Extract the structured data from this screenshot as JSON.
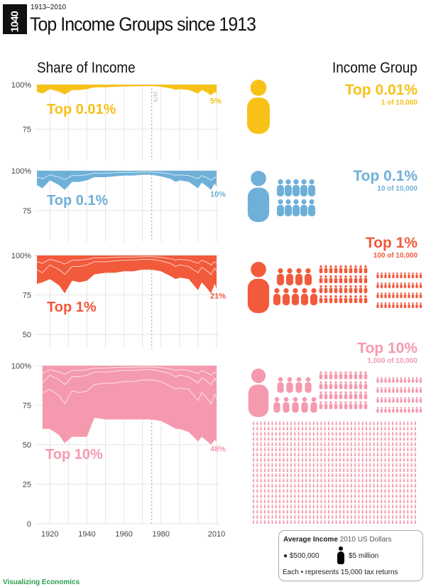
{
  "header": {
    "logo": "1040",
    "subtitle": "1913–2010",
    "title": "Top Income Groups since 1913"
  },
  "left_heading": "Share of Income",
  "right_heading": "Income Group",
  "groups": [
    {
      "name": "Top 0.01%",
      "count": "1 of 10,000",
      "end_label": "5%",
      "color": "#f7c118"
    },
    {
      "name": "Top 0.1%",
      "count": "10 of 10,000",
      "end_label": "10%",
      "color": "#6fb0d8"
    },
    {
      "name": "Top 1%",
      "count": "100 of 10,000",
      "end_label": "21%",
      "color": "#f25a3c"
    },
    {
      "name": "Top 10%",
      "count": "1,000 of 10,000",
      "end_label": "48%",
      "color": "#f59aae"
    }
  ],
  "legend": {
    "title": "Average Income",
    "units": "2010 US Dollars",
    "small": "$500,000",
    "large": "$5 million",
    "each": "Each",
    "represents": "represents 15,000 tax returns"
  },
  "credit": "Visualizing Economics",
  "chart_data": {
    "type": "area",
    "xlabel": "",
    "ylabel": "",
    "x_ticks": [
      "1920",
      "1940",
      "1960",
      "1980",
      "2010"
    ],
    "y_ticks": [
      "100%",
      "75",
      "50",
      "25",
      "0"
    ],
    "annotation": "1975",
    "xlim": [
      1913,
      2010
    ],
    "ylim": [
      0,
      100
    ],
    "grid": true,
    "x": [
      1913,
      1916,
      1920,
      1925,
      1928,
      1932,
      1936,
      1940,
      1944,
      1950,
      1955,
      1960,
      1965,
      1970,
      1975,
      1980,
      1985,
      1988,
      1990,
      1995,
      2000,
      2002,
      2005,
      2007,
      2009,
      2010
    ],
    "series": [
      {
        "name": "Top 0.01%",
        "values": [
          4,
          5,
          2.5,
          4,
          5.5,
          3,
          3,
          2.5,
          1.5,
          1.5,
          1.2,
          1,
          1,
          0.8,
          0.8,
          1.2,
          2,
          3,
          2.5,
          3,
          5,
          3,
          4.5,
          6,
          4,
          5
        ]
      },
      {
        "name": "Top 0.1%",
        "values": [
          9,
          11,
          6,
          9,
          12,
          7,
          7,
          6,
          4,
          4,
          3.5,
          3,
          3,
          2.5,
          2.5,
          3.5,
          5,
          7,
          6,
          7,
          11,
          7.5,
          10,
          12,
          8,
          10
        ]
      },
      {
        "name": "Top 1%",
        "values": [
          18,
          17,
          15,
          19,
          24,
          16,
          17,
          16,
          12,
          11,
          11,
          10,
          10,
          9,
          9,
          10,
          13,
          15,
          14,
          15,
          22,
          17,
          21,
          24,
          18,
          21
        ]
      },
      {
        "name": "Top 10%",
        "values": [
          null,
          40,
          40,
          44,
          49,
          45,
          45,
          45,
          33,
          34,
          34,
          34,
          34,
          34,
          34,
          35,
          38,
          40,
          40,
          42,
          48,
          45,
          48,
          50,
          47,
          48
        ]
      }
    ]
  }
}
